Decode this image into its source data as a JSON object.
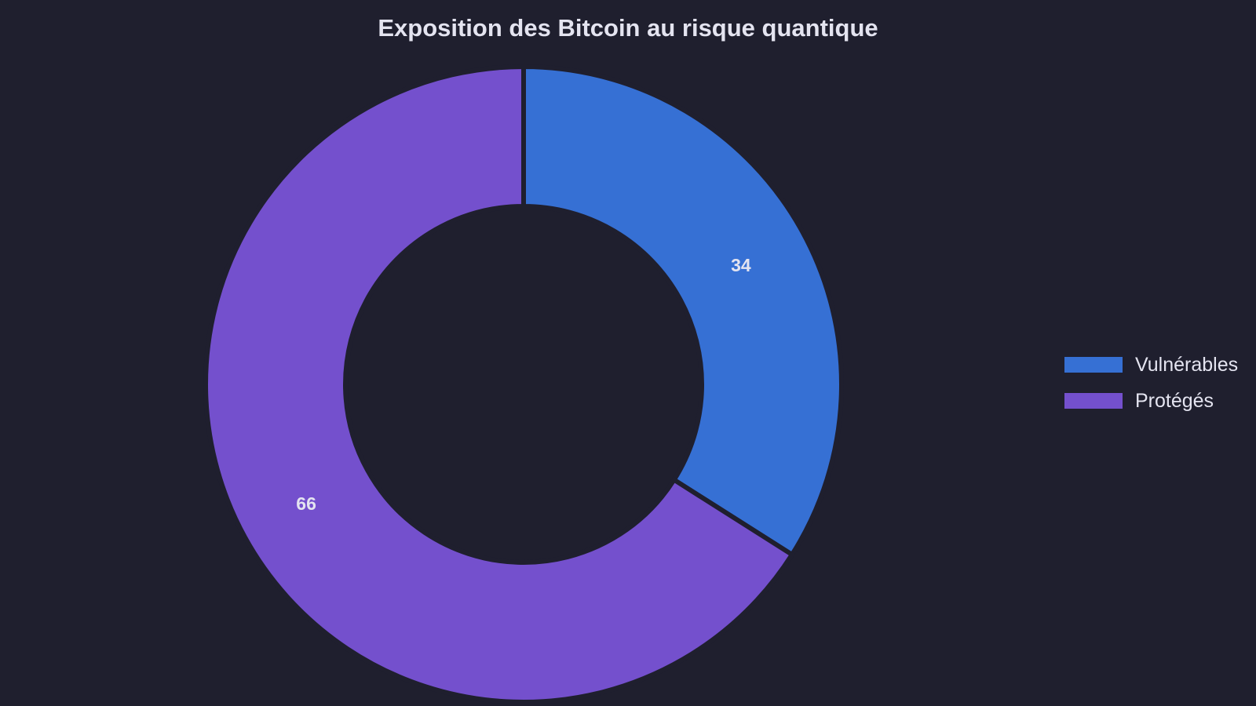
{
  "chart_data": {
    "type": "pie",
    "title": "Exposition des Bitcoin au risque quantique",
    "donut": true,
    "categories": [
      "Vulnérables",
      "Protégés"
    ],
    "values": [
      34,
      66
    ],
    "colors": [
      "#3670d4",
      "#7450cd"
    ],
    "background": "#1f1f2e",
    "legend_position": "right",
    "data_labels": [
      "34",
      "66"
    ]
  }
}
